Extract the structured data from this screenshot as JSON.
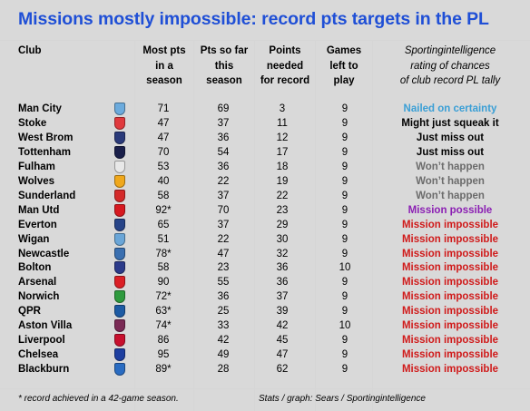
{
  "title": "Missions mostly impossible: record pts targets in the PL",
  "headers": {
    "club": "Club",
    "most_pts": [
      "Most pts",
      "in a",
      "season"
    ],
    "pts_so_far": [
      "Pts so far",
      "this",
      "season"
    ],
    "points_needed": [
      "Points",
      "needed",
      "for record"
    ],
    "games_left": [
      "Games",
      "left to",
      "play"
    ],
    "rating": [
      "Sportingintelligence",
      "rating of chances",
      "of club record PL tally"
    ]
  },
  "rating_colors": {
    "Nailed on certainty": "#3a9fd6",
    "Might just squeak it": "#000000",
    "Just miss out": "#000000",
    "Won't happen": "#6b6b6b",
    "Mission possible": "#8b1fb3",
    "Mission impossible": "#d01a1a"
  },
  "rows": [
    {
      "club": "Man City",
      "crest": "man-city-crest",
      "crest_color": "#6cabdd",
      "most": "71",
      "so_far": "69",
      "needed": "3",
      "games": "9",
      "rating": "Nailed on certainty"
    },
    {
      "club": "Stoke",
      "crest": "stoke-crest",
      "crest_color": "#e03a3e",
      "most": "47",
      "so_far": "37",
      "needed": "11",
      "games": "9",
      "rating": "Might just squeak it"
    },
    {
      "club": "West Brom",
      "crest": "west-brom-crest",
      "crest_color": "#2a3a7a",
      "most": "47",
      "so_far": "36",
      "needed": "12",
      "games": "9",
      "rating": "Just miss out"
    },
    {
      "club": "Tottenham",
      "crest": "tottenham-crest",
      "crest_color": "#1a1f4a",
      "most": "70",
      "so_far": "54",
      "needed": "17",
      "games": "9",
      "rating": "Just miss out"
    },
    {
      "club": "Fulham",
      "crest": "fulham-crest",
      "crest_color": "#e8e8e8",
      "most": "53",
      "so_far": "36",
      "needed": "18",
      "games": "9",
      "rating": "Won’t happen"
    },
    {
      "club": "Wolves",
      "crest": "wolves-crest",
      "crest_color": "#f0a81c",
      "most": "40",
      "so_far": "22",
      "needed": "19",
      "games": "9",
      "rating": "Won’t happen"
    },
    {
      "club": "Sunderland",
      "crest": "sunderland-crest",
      "crest_color": "#d42a2a",
      "most": "58",
      "so_far": "37",
      "needed": "22",
      "games": "9",
      "rating": "Won’t happen"
    },
    {
      "club": "Man Utd",
      "crest": "man-utd-crest",
      "crest_color": "#d71920",
      "most": "92*",
      "so_far": "70",
      "needed": "23",
      "games": "9",
      "rating": "Mission possible"
    },
    {
      "club": "Everton",
      "crest": "everton-crest",
      "crest_color": "#274488",
      "most": "65",
      "so_far": "37",
      "needed": "29",
      "games": "9",
      "rating": "Mission impossible"
    },
    {
      "club": "Wigan",
      "crest": "wigan-crest",
      "crest_color": "#6aa6d8",
      "most": "51",
      "so_far": "22",
      "needed": "30",
      "games": "9",
      "rating": "Mission impossible"
    },
    {
      "club": "Newcastle",
      "crest": "newcastle-crest",
      "crest_color": "#3a6fb0",
      "most": "78*",
      "so_far": "47",
      "needed": "32",
      "games": "9",
      "rating": "Mission impossible"
    },
    {
      "club": "Bolton",
      "crest": "bolton-crest",
      "crest_color": "#2b3a8a",
      "most": "58",
      "so_far": "23",
      "needed": "36",
      "games": "10",
      "rating": "Mission impossible"
    },
    {
      "club": "Arsenal",
      "crest": "arsenal-crest",
      "crest_color": "#db1f26",
      "most": "90",
      "so_far": "55",
      "needed": "36",
      "games": "9",
      "rating": "Mission impossible"
    },
    {
      "club": "Norwich",
      "crest": "norwich-crest",
      "crest_color": "#2e9a3e",
      "most": "72*",
      "so_far": "36",
      "needed": "37",
      "games": "9",
      "rating": "Mission impossible"
    },
    {
      "club": "QPR",
      "crest": "qpr-crest",
      "crest_color": "#1d5ba4",
      "most": "63*",
      "so_far": "25",
      "needed": "39",
      "games": "9",
      "rating": "Mission impossible"
    },
    {
      "club": "Aston Villa",
      "crest": "aston-villa-crest",
      "crest_color": "#7a2a55",
      "most": "74*",
      "so_far": "33",
      "needed": "42",
      "games": "10",
      "rating": "Mission impossible"
    },
    {
      "club": "Liverpool",
      "crest": "liverpool-crest",
      "crest_color": "#c8102e",
      "most": "86",
      "so_far": "42",
      "needed": "45",
      "games": "9",
      "rating": "Mission impossible"
    },
    {
      "club": "Chelsea",
      "crest": "chelsea-crest",
      "crest_color": "#1e3fa0",
      "most": "95",
      "so_far": "49",
      "needed": "47",
      "games": "9",
      "rating": "Mission impossible"
    },
    {
      "club": "Blackburn",
      "crest": "blackburn-crest",
      "crest_color": "#2a6cc2",
      "most": "89*",
      "so_far": "28",
      "needed": "62",
      "games": "9",
      "rating": "Mission impossible"
    }
  ],
  "footer": {
    "note": "* record achieved in a 42-game season.",
    "credit": "Stats / graph: Sears / Sportingintelligence"
  }
}
